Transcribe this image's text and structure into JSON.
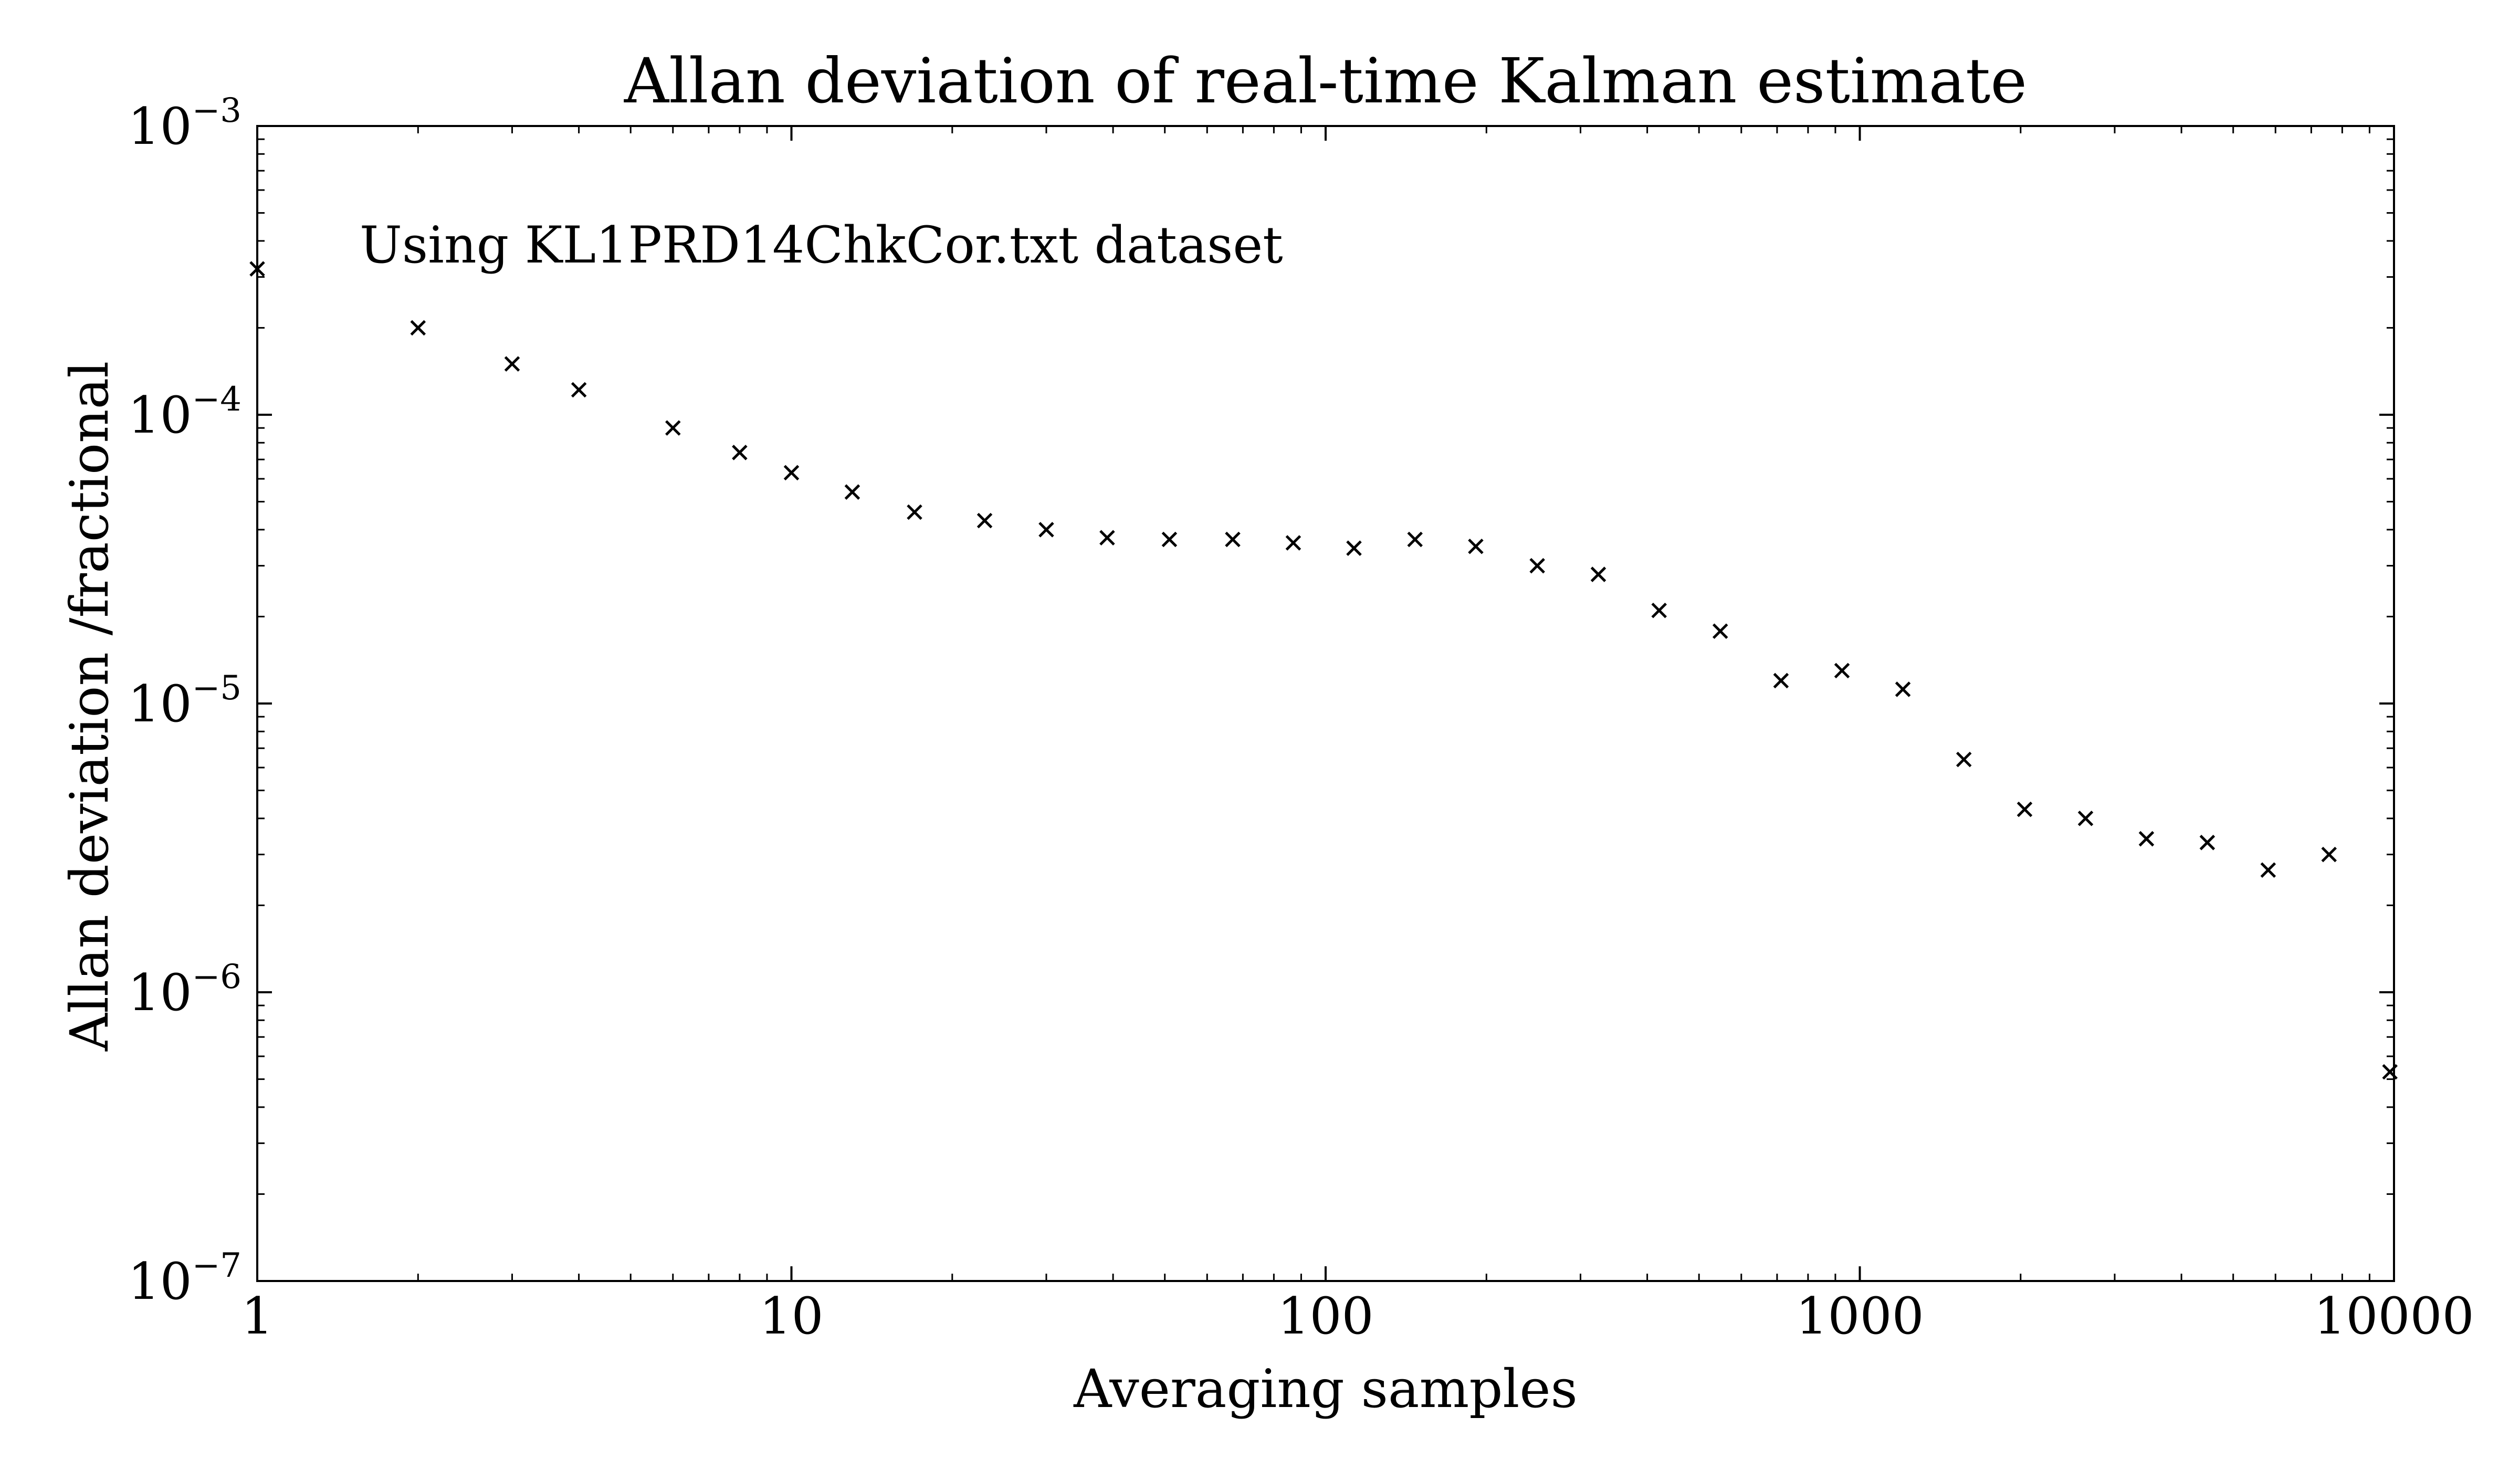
{
  "chart_data": {
    "type": "scatter",
    "title": "Allan deviation of real-time Kalman estimate",
    "xlabel": "Averaging samples",
    "ylabel": "Allan deviation /fractional",
    "annotation": "Using KL1PRD14ChkCor.txt dataset",
    "x_scale": "log",
    "y_scale": "log",
    "xlim": [
      1,
      10000
    ],
    "ylim": [
      1e-07,
      0.001
    ],
    "x_ticks": [
      {
        "value": 1,
        "label": "1"
      },
      {
        "value": 10,
        "label": "10"
      },
      {
        "value": 100,
        "label": "100"
      },
      {
        "value": 1000,
        "label": "1000"
      },
      {
        "value": 10000,
        "label": "10000"
      }
    ],
    "y_ticks": [
      {
        "value": 1e-07,
        "base": "10",
        "exp": "−7"
      },
      {
        "value": 1e-06,
        "base": "10",
        "exp": "−6"
      },
      {
        "value": 1e-05,
        "base": "10",
        "exp": "−5"
      },
      {
        "value": 0.0001,
        "base": "10",
        "exp": "−4"
      },
      {
        "value": 0.001,
        "base": "10",
        "exp": "−3"
      }
    ],
    "grid": false,
    "marker": "x",
    "marker_color": "#000000",
    "series": [
      {
        "x": [
          1,
          2,
          3,
          4,
          6,
          8,
          10,
          13,
          17,
          23,
          30,
          39,
          51,
          67,
          87,
          113,
          147,
          191,
          249,
          324,
          421,
          548,
          712,
          926,
          1204,
          1566,
          2035,
          2646,
          3440,
          4472,
          5814,
          7558,
          9826
        ],
        "y": [
          0.00032,
          0.0002,
          0.00015,
          0.000122,
          9e-05,
          7.4e-05,
          6.3e-05,
          5.4e-05,
          4.6e-05,
          4.3e-05,
          4e-05,
          3.75e-05,
          3.7e-05,
          3.7e-05,
          3.6e-05,
          3.45e-05,
          3.7e-05,
          3.5e-05,
          3e-05,
          2.8e-05,
          2.1e-05,
          1.78e-05,
          1.2e-05,
          1.3e-05,
          1.12e-05,
          6.4e-06,
          4.3e-06,
          4e-06,
          3.4e-06,
          3.3e-06,
          2.65e-06,
          3e-06,
          5.3e-07
        ]
      }
    ]
  }
}
